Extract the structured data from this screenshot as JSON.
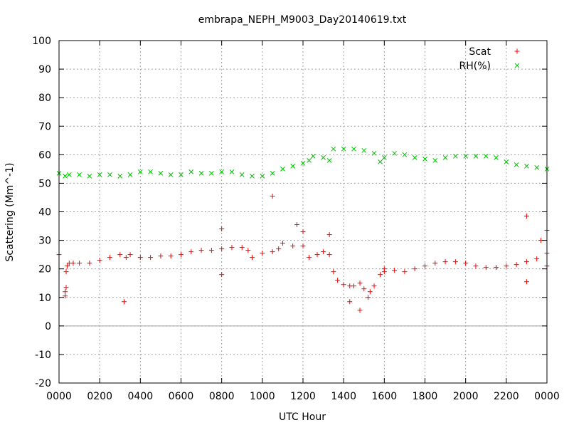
{
  "chart_data": {
    "type": "scatter",
    "title": "embrapa_NEPH_M9003_Day20140619.txt",
    "xlabel": "UTC Hour",
    "ylabel": "Scattering (Mm^-1)",
    "xlim": [
      0,
      24
    ],
    "ylim": [
      -20,
      100
    ],
    "grid": true,
    "legend_position": "top-right",
    "x_ticks": [
      {
        "v": 0,
        "label": "0000"
      },
      {
        "v": 2,
        "label": "0200"
      },
      {
        "v": 4,
        "label": "0400"
      },
      {
        "v": 6,
        "label": "0600"
      },
      {
        "v": 8,
        "label": "0800"
      },
      {
        "v": 10,
        "label": "1000"
      },
      {
        "v": 12,
        "label": "1200"
      },
      {
        "v": 14,
        "label": "1400"
      },
      {
        "v": 16,
        "label": "1600"
      },
      {
        "v": 18,
        "label": "1800"
      },
      {
        "v": 20,
        "label": "2000"
      },
      {
        "v": 22,
        "label": "2200"
      },
      {
        "v": 24,
        "label": "0000"
      }
    ],
    "y_ticks": [
      -20,
      -10,
      0,
      10,
      20,
      30,
      40,
      50,
      60,
      70,
      80,
      90,
      100
    ],
    "series": [
      {
        "name": "Scat",
        "color": "#ff0000",
        "marker": "plus",
        "x": [
          0.0,
          0.3,
          0.35,
          0.4,
          0.5,
          0.7,
          1.0,
          1.5,
          2.0,
          2.5,
          3.0,
          3.3,
          3.5,
          4.0,
          4.5,
          5.0,
          5.5,
          6.0,
          6.5,
          7.0,
          7.5,
          8.0,
          8.5,
          9.0,
          9.3,
          9.5,
          10.0,
          10.5,
          10.8,
          11.0,
          11.5,
          12.0,
          12.3,
          12.7,
          13.0,
          13.3,
          13.5,
          13.7,
          14.0,
          14.3,
          14.5,
          14.8,
          15.0,
          15.3,
          15.5,
          15.8,
          16.0,
          16.5,
          17.0,
          17.5,
          18.0,
          18.5,
          19.0,
          19.5,
          20.0,
          20.5,
          21.0,
          21.5,
          22.0,
          22.5,
          23.0,
          23.5,
          24.0
        ],
        "y": [
          25,
          12,
          19,
          21,
          22,
          22,
          22,
          22,
          23,
          24,
          25,
          24,
          25,
          24,
          24,
          24.5,
          24.5,
          25,
          26,
          26.5,
          26.5,
          27,
          27.5,
          27.5,
          26.5,
          24,
          25.5,
          26,
          27,
          29,
          28,
          28,
          24,
          25,
          26,
          25,
          19,
          16,
          14.5,
          14,
          14,
          15,
          13,
          12,
          14,
          18,
          19,
          19.5,
          19,
          20,
          21,
          22,
          22.5,
          22.5,
          22,
          21,
          20.5,
          20.5,
          21,
          21.5,
          22.5,
          23.5,
          25.5
        ]
      },
      {
        "name": "RH(%)",
        "color": "#00c000",
        "marker": "cross",
        "x": [
          0.0,
          0.3,
          0.5,
          1.0,
          1.5,
          2.0,
          2.5,
          3.0,
          3.5,
          4.0,
          4.5,
          5.0,
          5.5,
          6.0,
          6.5,
          7.0,
          7.5,
          8.0,
          8.5,
          9.0,
          9.5,
          10.0,
          10.5,
          11.0,
          11.5,
          12.0,
          12.3,
          12.5,
          13.0,
          13.3,
          13.5,
          14.0,
          14.5,
          15.0,
          15.5,
          15.8,
          16.0,
          16.5,
          17.0,
          17.5,
          18.0,
          18.5,
          19.0,
          19.5,
          20.0,
          20.5,
          21.0,
          21.5,
          22.0,
          22.5,
          23.0,
          23.5,
          24.0
        ],
        "y": [
          53.5,
          52.5,
          53,
          53,
          52.5,
          53,
          53,
          52.5,
          53,
          54,
          54,
          53.5,
          53,
          53,
          54,
          53.5,
          53.5,
          54,
          54,
          53,
          52.5,
          52.5,
          53.5,
          55,
          56,
          57,
          58,
          59.5,
          59,
          58,
          62,
          62,
          62,
          61.5,
          60.5,
          57.5,
          59,
          60.5,
          60,
          59,
          58.5,
          58,
          59,
          59.5,
          59.5,
          59.5,
          59.5,
          59,
          57.5,
          56.5,
          56,
          55.5,
          55
        ]
      }
    ],
    "outliers": {
      "name": "Scat",
      "x": [
        0.3,
        0.35,
        3.2,
        8.0,
        8.0,
        10.5,
        11.7,
        12.0,
        13.3,
        14.3,
        14.8,
        15.2,
        16.0,
        23.0,
        23.0,
        23.7,
        24.0,
        24.0
      ],
      "y": [
        10.5,
        13.5,
        8.5,
        34,
        18,
        45.5,
        35.5,
        33,
        32,
        8.5,
        5.5,
        10,
        20,
        38.5,
        15.5,
        30,
        33.5,
        21
      ]
    }
  }
}
